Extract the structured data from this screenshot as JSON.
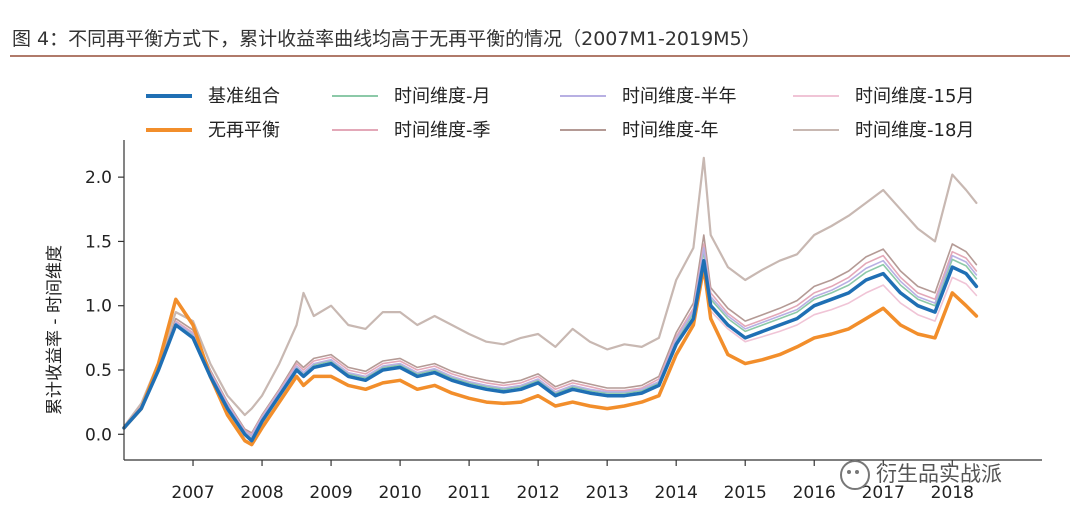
{
  "header": {
    "title": "图 4：不同再平衡方式下，累计收益率曲线均高于无再平衡的情况（2007M1-2019M5）"
  },
  "watermark": {
    "text": "衍生品实战派",
    "icon": "wechat-icon"
  },
  "chart_data": {
    "type": "line",
    "title": "",
    "xlabel": "",
    "ylabel": "累计收益率 - 时间维度",
    "ylim": [
      -0.2,
      2.25
    ],
    "xlim": [
      2006.0,
      2019.3
    ],
    "yticks": [
      0.0,
      0.5,
      1.0,
      1.5,
      2.0
    ],
    "ytick_labels": [
      "0.0",
      "0.5",
      "1.0",
      "1.5",
      "2.0"
    ],
    "xticks": [
      2007,
      2008,
      2009,
      2010,
      2011,
      2012,
      2013,
      2014,
      2015,
      2016,
      2017,
      2018
    ],
    "xtick_labels": [
      "2007",
      "2008",
      "2009",
      "2010",
      "2011",
      "2012",
      "2013",
      "2014",
      "2015",
      "2016",
      "2017",
      "2018"
    ],
    "grid": false,
    "legend_position": "top",
    "x": [
      2006.0,
      2006.25,
      2006.5,
      2006.75,
      2007.0,
      2007.25,
      2007.5,
      2007.75,
      2007.85,
      2008.0,
      2008.25,
      2008.5,
      2008.6,
      2008.75,
      2009.0,
      2009.25,
      2009.5,
      2009.75,
      2010.0,
      2010.25,
      2010.5,
      2010.75,
      2011.0,
      2011.25,
      2011.5,
      2011.75,
      2012.0,
      2012.25,
      2012.5,
      2012.75,
      2013.0,
      2013.25,
      2013.5,
      2013.75,
      2014.0,
      2014.25,
      2014.4,
      2014.5,
      2014.75,
      2015.0,
      2015.25,
      2015.5,
      2015.75,
      2016.0,
      2016.25,
      2016.5,
      2016.75,
      2017.0,
      2017.25,
      2017.5,
      2017.75,
      2018.0,
      2018.2,
      2018.35
    ],
    "series": [
      {
        "name": "基准组合",
        "color": "#1f6fb4",
        "width": 3.5,
        "values": [
          0.05,
          0.2,
          0.5,
          0.85,
          0.75,
          0.45,
          0.2,
          0.0,
          -0.05,
          0.1,
          0.3,
          0.5,
          0.45,
          0.52,
          0.55,
          0.45,
          0.42,
          0.5,
          0.52,
          0.45,
          0.48,
          0.42,
          0.38,
          0.35,
          0.33,
          0.35,
          0.4,
          0.3,
          0.35,
          0.32,
          0.3,
          0.3,
          0.32,
          0.38,
          0.7,
          0.9,
          1.35,
          1.0,
          0.85,
          0.75,
          0.8,
          0.85,
          0.9,
          1.0,
          1.05,
          1.1,
          1.2,
          1.25,
          1.1,
          1.0,
          0.95,
          1.3,
          1.25,
          1.15
        ]
      },
      {
        "name": "无再平衡",
        "color": "#f28e2b",
        "width": 3.5,
        "values": [
          0.05,
          0.2,
          0.55,
          1.05,
          0.85,
          0.45,
          0.15,
          -0.05,
          -0.08,
          0.05,
          0.25,
          0.45,
          0.38,
          0.45,
          0.45,
          0.38,
          0.35,
          0.4,
          0.42,
          0.35,
          0.38,
          0.32,
          0.28,
          0.25,
          0.24,
          0.25,
          0.3,
          0.22,
          0.25,
          0.22,
          0.2,
          0.22,
          0.25,
          0.3,
          0.62,
          0.85,
          1.3,
          0.9,
          0.62,
          0.55,
          0.58,
          0.62,
          0.68,
          0.75,
          0.78,
          0.82,
          0.9,
          0.98,
          0.85,
          0.78,
          0.75,
          1.1,
          1.0,
          0.92
        ]
      },
      {
        "name": "时间维度-月",
        "color": "#8cc9a8",
        "width": 1.6,
        "values": [
          0.06,
          0.21,
          0.5,
          0.86,
          0.77,
          0.47,
          0.22,
          0.02,
          -0.02,
          0.12,
          0.32,
          0.52,
          0.47,
          0.54,
          0.57,
          0.47,
          0.44,
          0.52,
          0.54,
          0.47,
          0.5,
          0.44,
          0.4,
          0.37,
          0.35,
          0.37,
          0.42,
          0.32,
          0.37,
          0.34,
          0.32,
          0.32,
          0.34,
          0.4,
          0.73,
          0.94,
          1.42,
          1.05,
          0.9,
          0.8,
          0.85,
          0.9,
          0.95,
          1.05,
          1.1,
          1.16,
          1.26,
          1.32,
          1.16,
          1.05,
          1.0,
          1.36,
          1.31,
          1.21
        ]
      },
      {
        "name": "时间维度-季",
        "color": "#e3a8b8",
        "width": 1.6,
        "values": [
          0.06,
          0.22,
          0.51,
          0.88,
          0.79,
          0.49,
          0.24,
          0.03,
          0.0,
          0.14,
          0.34,
          0.55,
          0.5,
          0.57,
          0.6,
          0.5,
          0.47,
          0.55,
          0.57,
          0.5,
          0.53,
          0.47,
          0.43,
          0.4,
          0.38,
          0.4,
          0.45,
          0.35,
          0.4,
          0.37,
          0.34,
          0.34,
          0.36,
          0.43,
          0.76,
          0.98,
          1.48,
          1.1,
          0.94,
          0.84,
          0.89,
          0.94,
          1.0,
          1.1,
          1.15,
          1.22,
          1.33,
          1.39,
          1.22,
          1.1,
          1.05,
          1.42,
          1.37,
          1.27
        ]
      },
      {
        "name": "时间维度-半年",
        "color": "#b8b0e3",
        "width": 1.6,
        "values": [
          0.05,
          0.21,
          0.5,
          0.87,
          0.78,
          0.48,
          0.23,
          0.02,
          -0.01,
          0.13,
          0.33,
          0.53,
          0.48,
          0.55,
          0.58,
          0.48,
          0.45,
          0.53,
          0.55,
          0.48,
          0.51,
          0.45,
          0.41,
          0.38,
          0.36,
          0.38,
          0.43,
          0.33,
          0.38,
          0.35,
          0.33,
          0.33,
          0.35,
          0.41,
          0.74,
          0.96,
          1.45,
          1.07,
          0.92,
          0.82,
          0.87,
          0.92,
          0.97,
          1.07,
          1.12,
          1.19,
          1.29,
          1.35,
          1.19,
          1.07,
          1.02,
          1.39,
          1.34,
          1.24
        ]
      },
      {
        "name": "时间维度-年",
        "color": "#b49a95",
        "width": 1.6,
        "values": [
          0.06,
          0.22,
          0.52,
          0.9,
          0.81,
          0.5,
          0.25,
          0.04,
          0.01,
          0.15,
          0.35,
          0.57,
          0.52,
          0.59,
          0.62,
          0.52,
          0.49,
          0.57,
          0.59,
          0.52,
          0.55,
          0.49,
          0.45,
          0.42,
          0.4,
          0.42,
          0.47,
          0.37,
          0.42,
          0.39,
          0.36,
          0.36,
          0.38,
          0.45,
          0.79,
          1.02,
          1.55,
          1.14,
          0.98,
          0.88,
          0.93,
          0.98,
          1.04,
          1.15,
          1.2,
          1.27,
          1.38,
          1.44,
          1.27,
          1.15,
          1.1,
          1.48,
          1.42,
          1.32
        ]
      },
      {
        "name": "时间维度-15月",
        "color": "#f0c4d6",
        "width": 1.6,
        "values": [
          0.05,
          0.2,
          0.49,
          0.85,
          0.76,
          0.46,
          0.21,
          0.01,
          -0.03,
          0.11,
          0.31,
          0.5,
          0.45,
          0.52,
          0.54,
          0.45,
          0.42,
          0.5,
          0.52,
          0.45,
          0.48,
          0.42,
          0.38,
          0.35,
          0.33,
          0.35,
          0.4,
          0.3,
          0.35,
          0.32,
          0.3,
          0.3,
          0.32,
          0.38,
          0.7,
          0.88,
          1.3,
          0.96,
          0.82,
          0.72,
          0.76,
          0.8,
          0.85,
          0.93,
          0.97,
          1.02,
          1.1,
          1.16,
          1.02,
          0.93,
          0.88,
          1.22,
          1.17,
          1.08
        ]
      },
      {
        "name": "时间维度-18月",
        "color": "#c8b8b2",
        "width": 2.2,
        "values": [
          0.06,
          0.24,
          0.56,
          0.95,
          0.88,
          0.55,
          0.3,
          0.15,
          0.2,
          0.3,
          0.55,
          0.85,
          1.1,
          0.92,
          1.0,
          0.85,
          0.82,
          0.95,
          0.95,
          0.85,
          0.92,
          0.85,
          0.78,
          0.72,
          0.7,
          0.75,
          0.78,
          0.68,
          0.82,
          0.72,
          0.66,
          0.7,
          0.68,
          0.75,
          1.2,
          1.45,
          2.15,
          1.55,
          1.3,
          1.2,
          1.28,
          1.35,
          1.4,
          1.55,
          1.62,
          1.7,
          1.8,
          1.9,
          1.75,
          1.6,
          1.5,
          2.02,
          1.9,
          1.8
        ]
      }
    ],
    "legend_rows": [
      [
        "基准组合",
        "时间维度-月",
        "时间维度-半年",
        "时间维度-15月"
      ],
      [
        "无再平衡",
        "时间维度-季",
        "时间维度-年",
        "时间维度-18月"
      ]
    ]
  }
}
